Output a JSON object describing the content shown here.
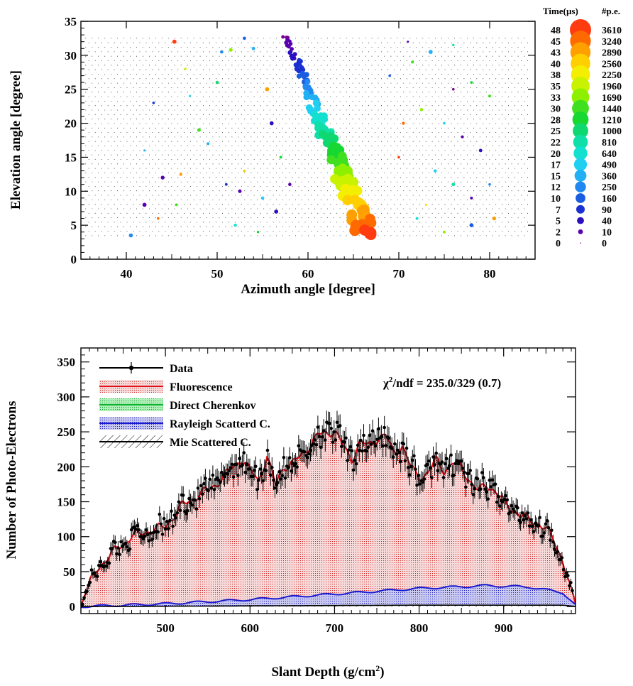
{
  "top_chart": {
    "xlabel": "Azimuth angle [degree]",
    "ylabel": "Elevation angle [degree]",
    "xlim": [
      35,
      85
    ],
    "ylim": [
      0,
      35
    ],
    "xticks": [
      40,
      50,
      60,
      70,
      80
    ],
    "yticks": [
      0,
      5,
      10,
      15,
      20,
      25,
      30,
      35
    ],
    "scale_headers": {
      "time": "Time(µs)",
      "pe": "#p.e."
    },
    "time_labels": [
      "48",
      "45",
      "43",
      "40",
      "38",
      "35",
      "33",
      "30",
      "28",
      "25",
      "22",
      "20",
      "17",
      "15",
      "12",
      "10",
      "7",
      "5",
      "2",
      "0"
    ],
    "pe_labels": [
      "3610",
      "3240",
      "2890",
      "2560",
      "2250",
      "1960",
      "1690",
      "1440",
      "1210",
      "1000",
      "810",
      "640",
      "490",
      "360",
      "250",
      "160",
      "90",
      "40",
      "10",
      "0"
    ],
    "scale_colors": [
      "#ff3b10",
      "#ff6a00",
      "#ffa000",
      "#ffcf00",
      "#f4ee00",
      "#c8f200",
      "#8cf000",
      "#40e020",
      "#16d830",
      "#10d870",
      "#10e0a8",
      "#14e0d0",
      "#20d0f0",
      "#22b0f4",
      "#2088f0",
      "#1a5ce0",
      "#1a30d0",
      "#2a10c0",
      "#5a00b0",
      "#7a0090"
    ]
  },
  "chart_data": [
    {
      "type": "scatter",
      "xlabel": "Azimuth angle [degree]",
      "ylabel": "Elevation angle [degree]",
      "xlim": [
        35,
        85
      ],
      "ylim": [
        0,
        35
      ],
      "grid": true,
      "track": {
        "x_start": 57.5,
        "y_start": 33,
        "x_end": 66.5,
        "y_end": 3.5,
        "time_start_us": 0,
        "time_end_us": 48,
        "pe_start": 200,
        "pe_end": 3610
      },
      "noise_hits": [
        [
          45.3,
          32
        ],
        [
          46.5,
          28
        ],
        [
          50.5,
          30.5
        ],
        [
          51.5,
          30.8
        ],
        [
          53,
          32.5
        ],
        [
          54,
          31
        ],
        [
          43,
          23
        ],
        [
          48,
          19
        ],
        [
          42,
          16
        ],
        [
          49,
          17
        ],
        [
          44,
          12
        ],
        [
          46,
          12.5
        ],
        [
          52.5,
          10
        ],
        [
          55,
          9
        ],
        [
          42,
          8
        ],
        [
          45.5,
          8
        ],
        [
          51,
          11
        ],
        [
          53,
          13
        ],
        [
          57,
          15
        ],
        [
          58,
          11
        ],
        [
          40.5,
          3.5
        ],
        [
          43.5,
          6
        ],
        [
          52,
          5
        ],
        [
          54.5,
          4
        ],
        [
          71,
          32
        ],
        [
          71.5,
          29
        ],
        [
          73.5,
          30.5
        ],
        [
          76,
          31.5
        ],
        [
          78,
          26
        ],
        [
          80,
          24
        ],
        [
          72.5,
          22
        ],
        [
          75,
          20
        ],
        [
          77,
          18
        ],
        [
          79,
          16
        ],
        [
          74,
          13
        ],
        [
          76,
          11
        ],
        [
          78,
          9
        ],
        [
          80,
          11
        ],
        [
          72,
          6
        ],
        [
          75,
          4
        ],
        [
          78,
          5
        ],
        [
          80.5,
          6
        ],
        [
          70.5,
          20
        ],
        [
          73,
          8
        ],
        [
          76,
          25
        ],
        [
          47,
          24
        ],
        [
          50,
          26
        ],
        [
          55.5,
          25
        ],
        [
          56,
          20
        ],
        [
          56.5,
          7
        ],
        [
          69,
          27
        ],
        [
          70,
          15
        ]
      ]
    },
    {
      "type": "line",
      "xlabel": "Slant Depth (g/cm²)",
      "ylabel": "Number of Photo-Electrons",
      "xlim": [
        400,
        985
      ],
      "ylim": [
        -10,
        370
      ],
      "xticks": [
        500,
        600,
        700,
        800,
        900
      ],
      "yticks": [
        0,
        50,
        100,
        150,
        200,
        250,
        300,
        350
      ],
      "fit_text_main": "χ",
      "fit_text_sup": "2",
      "fit_text_rest": "/ndf = 235.0/329 (0.7)",
      "legend": [
        "Data",
        "Fluorescence",
        "Direct Cherenkov",
        "Rayleigh Scatterd C.",
        "Mie Scattered C."
      ],
      "legend_position": "top-left",
      "fluorescence_knots": [
        [
          400,
          2
        ],
        [
          405,
          20
        ],
        [
          420,
          55
        ],
        [
          440,
          80
        ],
        [
          460,
          100
        ],
        [
          480,
          108
        ],
        [
          500,
          115
        ],
        [
          520,
          145
        ],
        [
          540,
          160
        ],
        [
          560,
          175
        ],
        [
          580,
          200
        ],
        [
          590,
          212
        ],
        [
          600,
          195
        ],
        [
          610,
          180
        ],
        [
          620,
          215
        ],
        [
          630,
          175
        ],
        [
          640,
          200
        ],
        [
          650,
          205
        ],
        [
          660,
          215
        ],
        [
          670,
          230
        ],
        [
          680,
          245
        ],
        [
          690,
          248
        ],
        [
          700,
          252
        ],
        [
          710,
          230
        ],
        [
          720,
          210
        ],
        [
          730,
          235
        ],
        [
          740,
          230
        ],
        [
          750,
          240
        ],
        [
          760,
          245
        ],
        [
          770,
          220
        ],
        [
          780,
          230
        ],
        [
          790,
          200
        ],
        [
          800,
          185
        ],
        [
          810,
          190
        ],
        [
          820,
          210
        ],
        [
          830,
          195
        ],
        [
          840,
          205
        ],
        [
          850,
          200
        ],
        [
          860,
          180
        ],
        [
          870,
          165
        ],
        [
          880,
          175
        ],
        [
          890,
          165
        ],
        [
          900,
          150
        ],
        [
          910,
          140
        ],
        [
          920,
          130
        ],
        [
          930,
          125
        ],
        [
          940,
          120
        ],
        [
          950,
          110
        ],
        [
          960,
          95
        ],
        [
          970,
          65
        ],
        [
          980,
          20
        ],
        [
          985,
          5
        ]
      ],
      "rayleigh_knots": [
        [
          400,
          0
        ],
        [
          500,
          4
        ],
        [
          600,
          10
        ],
        [
          700,
          18
        ],
        [
          800,
          26
        ],
        [
          880,
          30
        ],
        [
          930,
          28
        ],
        [
          970,
          20
        ],
        [
          985,
          2
        ]
      ],
      "mie_knots": [
        [
          400,
          0
        ],
        [
          600,
          1
        ],
        [
          800,
          2
        ],
        [
          970,
          2
        ],
        [
          985,
          0
        ]
      ]
    }
  ],
  "bottom_chart": {
    "xlabel_main": "Slant Depth (g/cm",
    "xlabel_sup": "2",
    "xlabel_end": ")",
    "ylabel": "Number of Photo-Electrons",
    "xticks": [
      500,
      600,
      700,
      800,
      900
    ],
    "yticks": [
      0,
      50,
      100,
      150,
      200,
      250,
      300,
      350
    ],
    "legend": [
      "Data",
      "Fluorescence",
      "Direct Cherenkov",
      "Rayleigh Scatterd C.",
      "Mie Scattered C."
    ],
    "fit_text_main": "χ",
    "fit_text_sup": "2",
    "fit_text_rest": "/ndf = 235.0/329 (0.7)"
  }
}
